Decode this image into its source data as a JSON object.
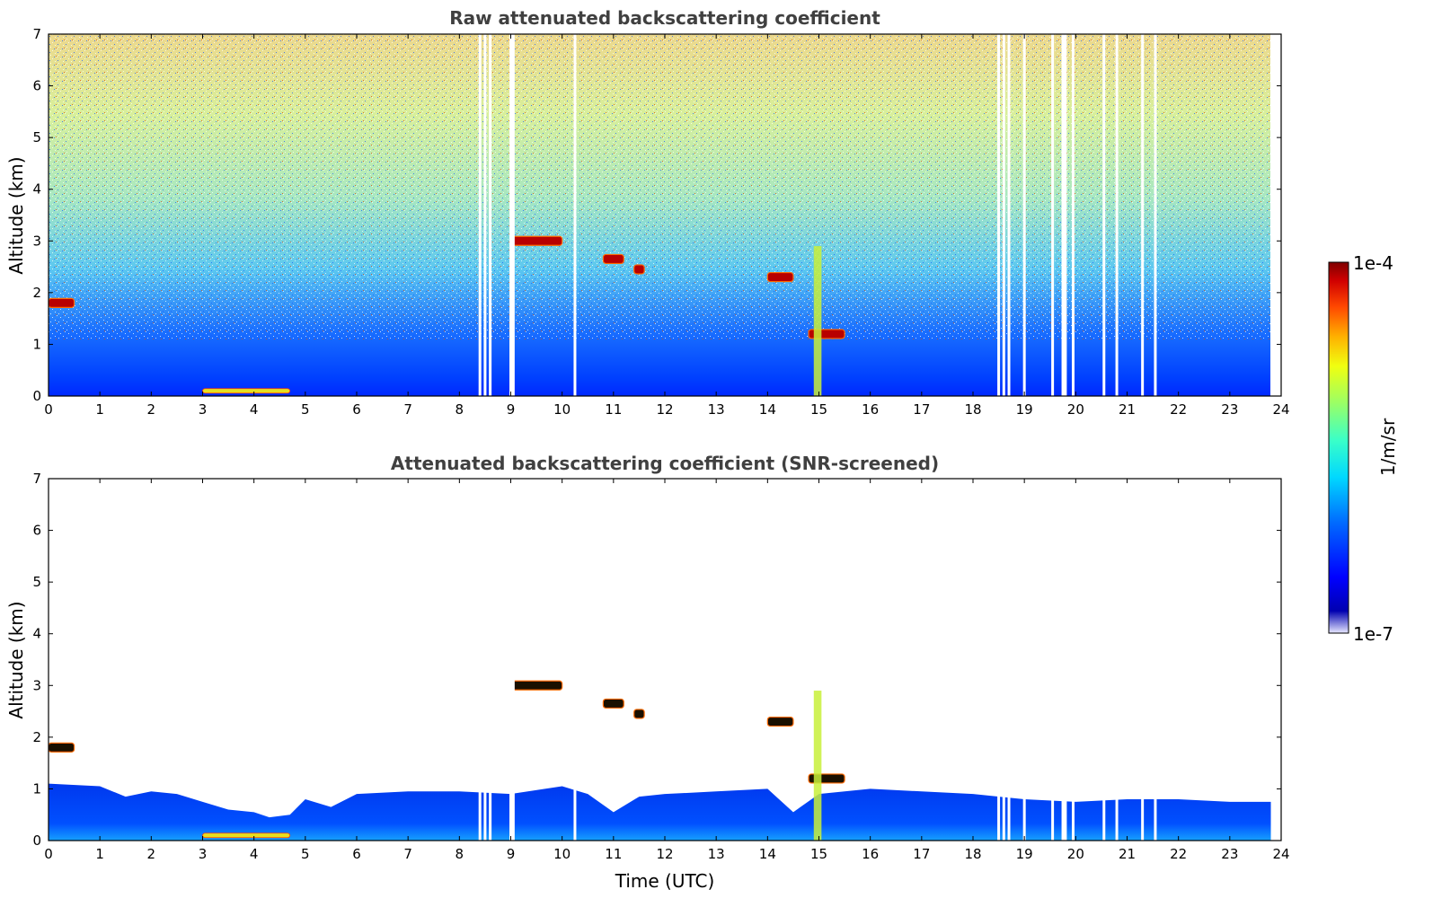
{
  "chart_data": [
    {
      "type": "heatmap",
      "title": "Raw attenuated backscattering coefficient",
      "xlabel": "",
      "ylabel": "Altitude (km)",
      "xlim": [
        0,
        24
      ],
      "ylim": [
        0,
        7
      ],
      "x_ticks": [
        "0",
        "1",
        "2",
        "3",
        "4",
        "5",
        "6",
        "7",
        "8",
        "9",
        "10",
        "11",
        "12",
        "13",
        "14",
        "15",
        "16",
        "17",
        "18",
        "19",
        "20",
        "21",
        "22",
        "23",
        "24"
      ],
      "y_ticks": [
        "0",
        "1",
        "2",
        "3",
        "4",
        "5",
        "6",
        "7"
      ],
      "data_end_hour": 23.8,
      "missing_profile_hours": [
        8.4,
        8.5,
        8.6,
        9.0,
        9.05,
        10.25,
        18.5,
        18.6,
        18.7,
        19.0,
        19.55,
        19.75,
        19.8,
        19.95,
        20.55,
        20.8,
        21.3,
        21.55
      ],
      "features": [
        {
          "label": "cloud",
          "t_start": 0.0,
          "t_end": 0.5,
          "alt_km": 1.8
        },
        {
          "label": "cloud",
          "t_start": 9.0,
          "t_end": 10.0,
          "alt_km": 3.0
        },
        {
          "label": "cloud",
          "t_start": 10.8,
          "t_end": 11.2,
          "alt_km": 2.65
        },
        {
          "label": "cloud",
          "t_start": 11.4,
          "t_end": 11.6,
          "alt_km": 2.45
        },
        {
          "label": "cloud",
          "t_start": 14.0,
          "t_end": 14.5,
          "alt_km": 2.3
        },
        {
          "label": "cloud",
          "t_start": 14.8,
          "t_end": 15.5,
          "alt_km": 1.2
        },
        {
          "label": "surface layer",
          "t_start": 3.0,
          "t_end": 4.7,
          "alt_km": 0.1
        }
      ]
    },
    {
      "type": "heatmap",
      "title": "Attenuated backscattering coefficient (SNR-screened)",
      "xlabel": "Time (UTC)",
      "ylabel": "Altitude (km)",
      "xlim": [
        0,
        24
      ],
      "ylim": [
        0,
        7
      ],
      "x_ticks": [
        "0",
        "1",
        "2",
        "3",
        "4",
        "5",
        "6",
        "7",
        "8",
        "9",
        "10",
        "11",
        "12",
        "13",
        "14",
        "15",
        "16",
        "17",
        "18",
        "19",
        "20",
        "21",
        "22",
        "23",
        "24"
      ],
      "y_ticks": [
        "0",
        "1",
        "2",
        "3",
        "4",
        "5",
        "6",
        "7"
      ],
      "boundary_layer_top_km": [
        [
          0,
          1.1
        ],
        [
          1,
          1.05
        ],
        [
          1.5,
          0.85
        ],
        [
          2,
          0.95
        ],
        [
          2.5,
          0.9
        ],
        [
          3,
          0.75
        ],
        [
          3.5,
          0.6
        ],
        [
          4,
          0.55
        ],
        [
          4.3,
          0.45
        ],
        [
          4.7,
          0.5
        ],
        [
          5,
          0.8
        ],
        [
          5.5,
          0.65
        ],
        [
          6,
          0.9
        ],
        [
          7,
          0.95
        ],
        [
          8,
          0.95
        ],
        [
          9,
          0.9
        ],
        [
          10,
          1.05
        ],
        [
          10.5,
          0.9
        ],
        [
          11,
          0.55
        ],
        [
          11.5,
          0.85
        ],
        [
          12,
          0.9
        ],
        [
          13,
          0.95
        ],
        [
          14,
          1.0
        ],
        [
          14.5,
          0.55
        ],
        [
          15,
          0.9
        ],
        [
          16,
          1.0
        ],
        [
          17,
          0.95
        ],
        [
          18,
          0.9
        ],
        [
          19,
          0.8
        ],
        [
          20,
          0.75
        ],
        [
          21,
          0.8
        ],
        [
          22,
          0.8
        ],
        [
          23,
          0.75
        ],
        [
          23.8,
          0.75
        ]
      ]
    }
  ],
  "colorbar": {
    "label": "1/m/sr",
    "max_label": "1e-4",
    "min_label": "1e-7",
    "colors": [
      "#7f0000",
      "#d40000",
      "#ff3500",
      "#ff8d00",
      "#ffdd00",
      "#c1ff36",
      "#6dff89",
      "#2affcd",
      "#00c0ff",
      "#0070ff",
      "#0010ff",
      "#0000b0"
    ]
  }
}
